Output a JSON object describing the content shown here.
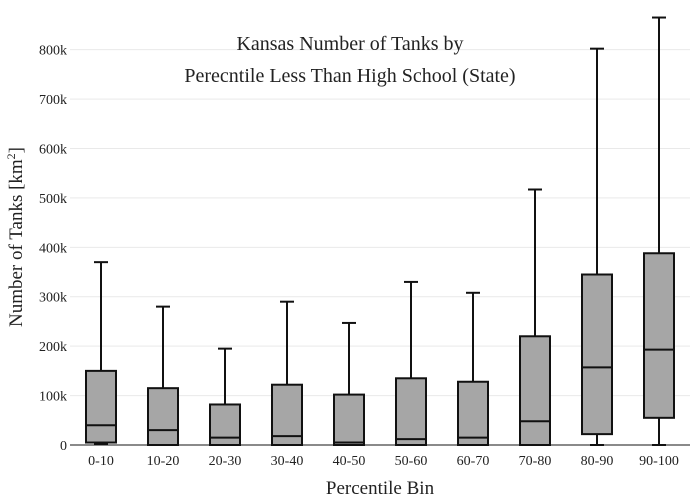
{
  "chart_data": {
    "type": "box",
    "title_lines": [
      "Kansas Number of Tanks by",
      "Perecntile Less Than High School (State)"
    ],
    "xlabel": "Percentile Bin",
    "ylabel": {
      "text": "Number of Tanks  [km",
      "superscript": "2",
      "suffix": "]"
    },
    "ylim": [
      0,
      860000
    ],
    "yticks": [
      0,
      100000,
      200000,
      300000,
      400000,
      500000,
      600000,
      700000,
      800000
    ],
    "ytick_labels": [
      "0",
      "100k",
      "200k",
      "300k",
      "400k",
      "500k",
      "600k",
      "700k",
      "800k"
    ],
    "grid": true,
    "categories": [
      "0-10",
      "10-20",
      "20-30",
      "30-40",
      "40-50",
      "50-60",
      "60-70",
      "70-80",
      "80-90",
      "90-100"
    ],
    "series": [
      {
        "values": [
          {
            "min": 2000,
            "q1": 5000,
            "median": 40000,
            "q3": 150000,
            "max": 370000
          },
          {
            "min": 0,
            "q1": 0,
            "median": 30000,
            "q3": 115000,
            "max": 280000
          },
          {
            "min": 0,
            "q1": 0,
            "median": 15000,
            "q3": 82000,
            "max": 195000
          },
          {
            "min": 0,
            "q1": 0,
            "median": 18000,
            "q3": 122000,
            "max": 290000
          },
          {
            "min": 0,
            "q1": 0,
            "median": 5000,
            "q3": 102000,
            "max": 247000
          },
          {
            "min": 0,
            "q1": 0,
            "median": 12000,
            "q3": 135000,
            "max": 330000
          },
          {
            "min": 0,
            "q1": 0,
            "median": 15000,
            "q3": 128000,
            "max": 308000
          },
          {
            "min": 0,
            "q1": 0,
            "median": 48000,
            "q3": 220000,
            "max": 517000
          },
          {
            "min": 0,
            "q1": 22000,
            "median": 157000,
            "q3": 345000,
            "max": 802000
          },
          {
            "min": 0,
            "q1": 55000,
            "median": 193000,
            "q3": 388000,
            "max": 865000
          }
        ]
      }
    ],
    "colors": {
      "box_fill": "#a6a6a6",
      "box_stroke": "#111111",
      "grid": "#e9e9e9"
    }
  }
}
